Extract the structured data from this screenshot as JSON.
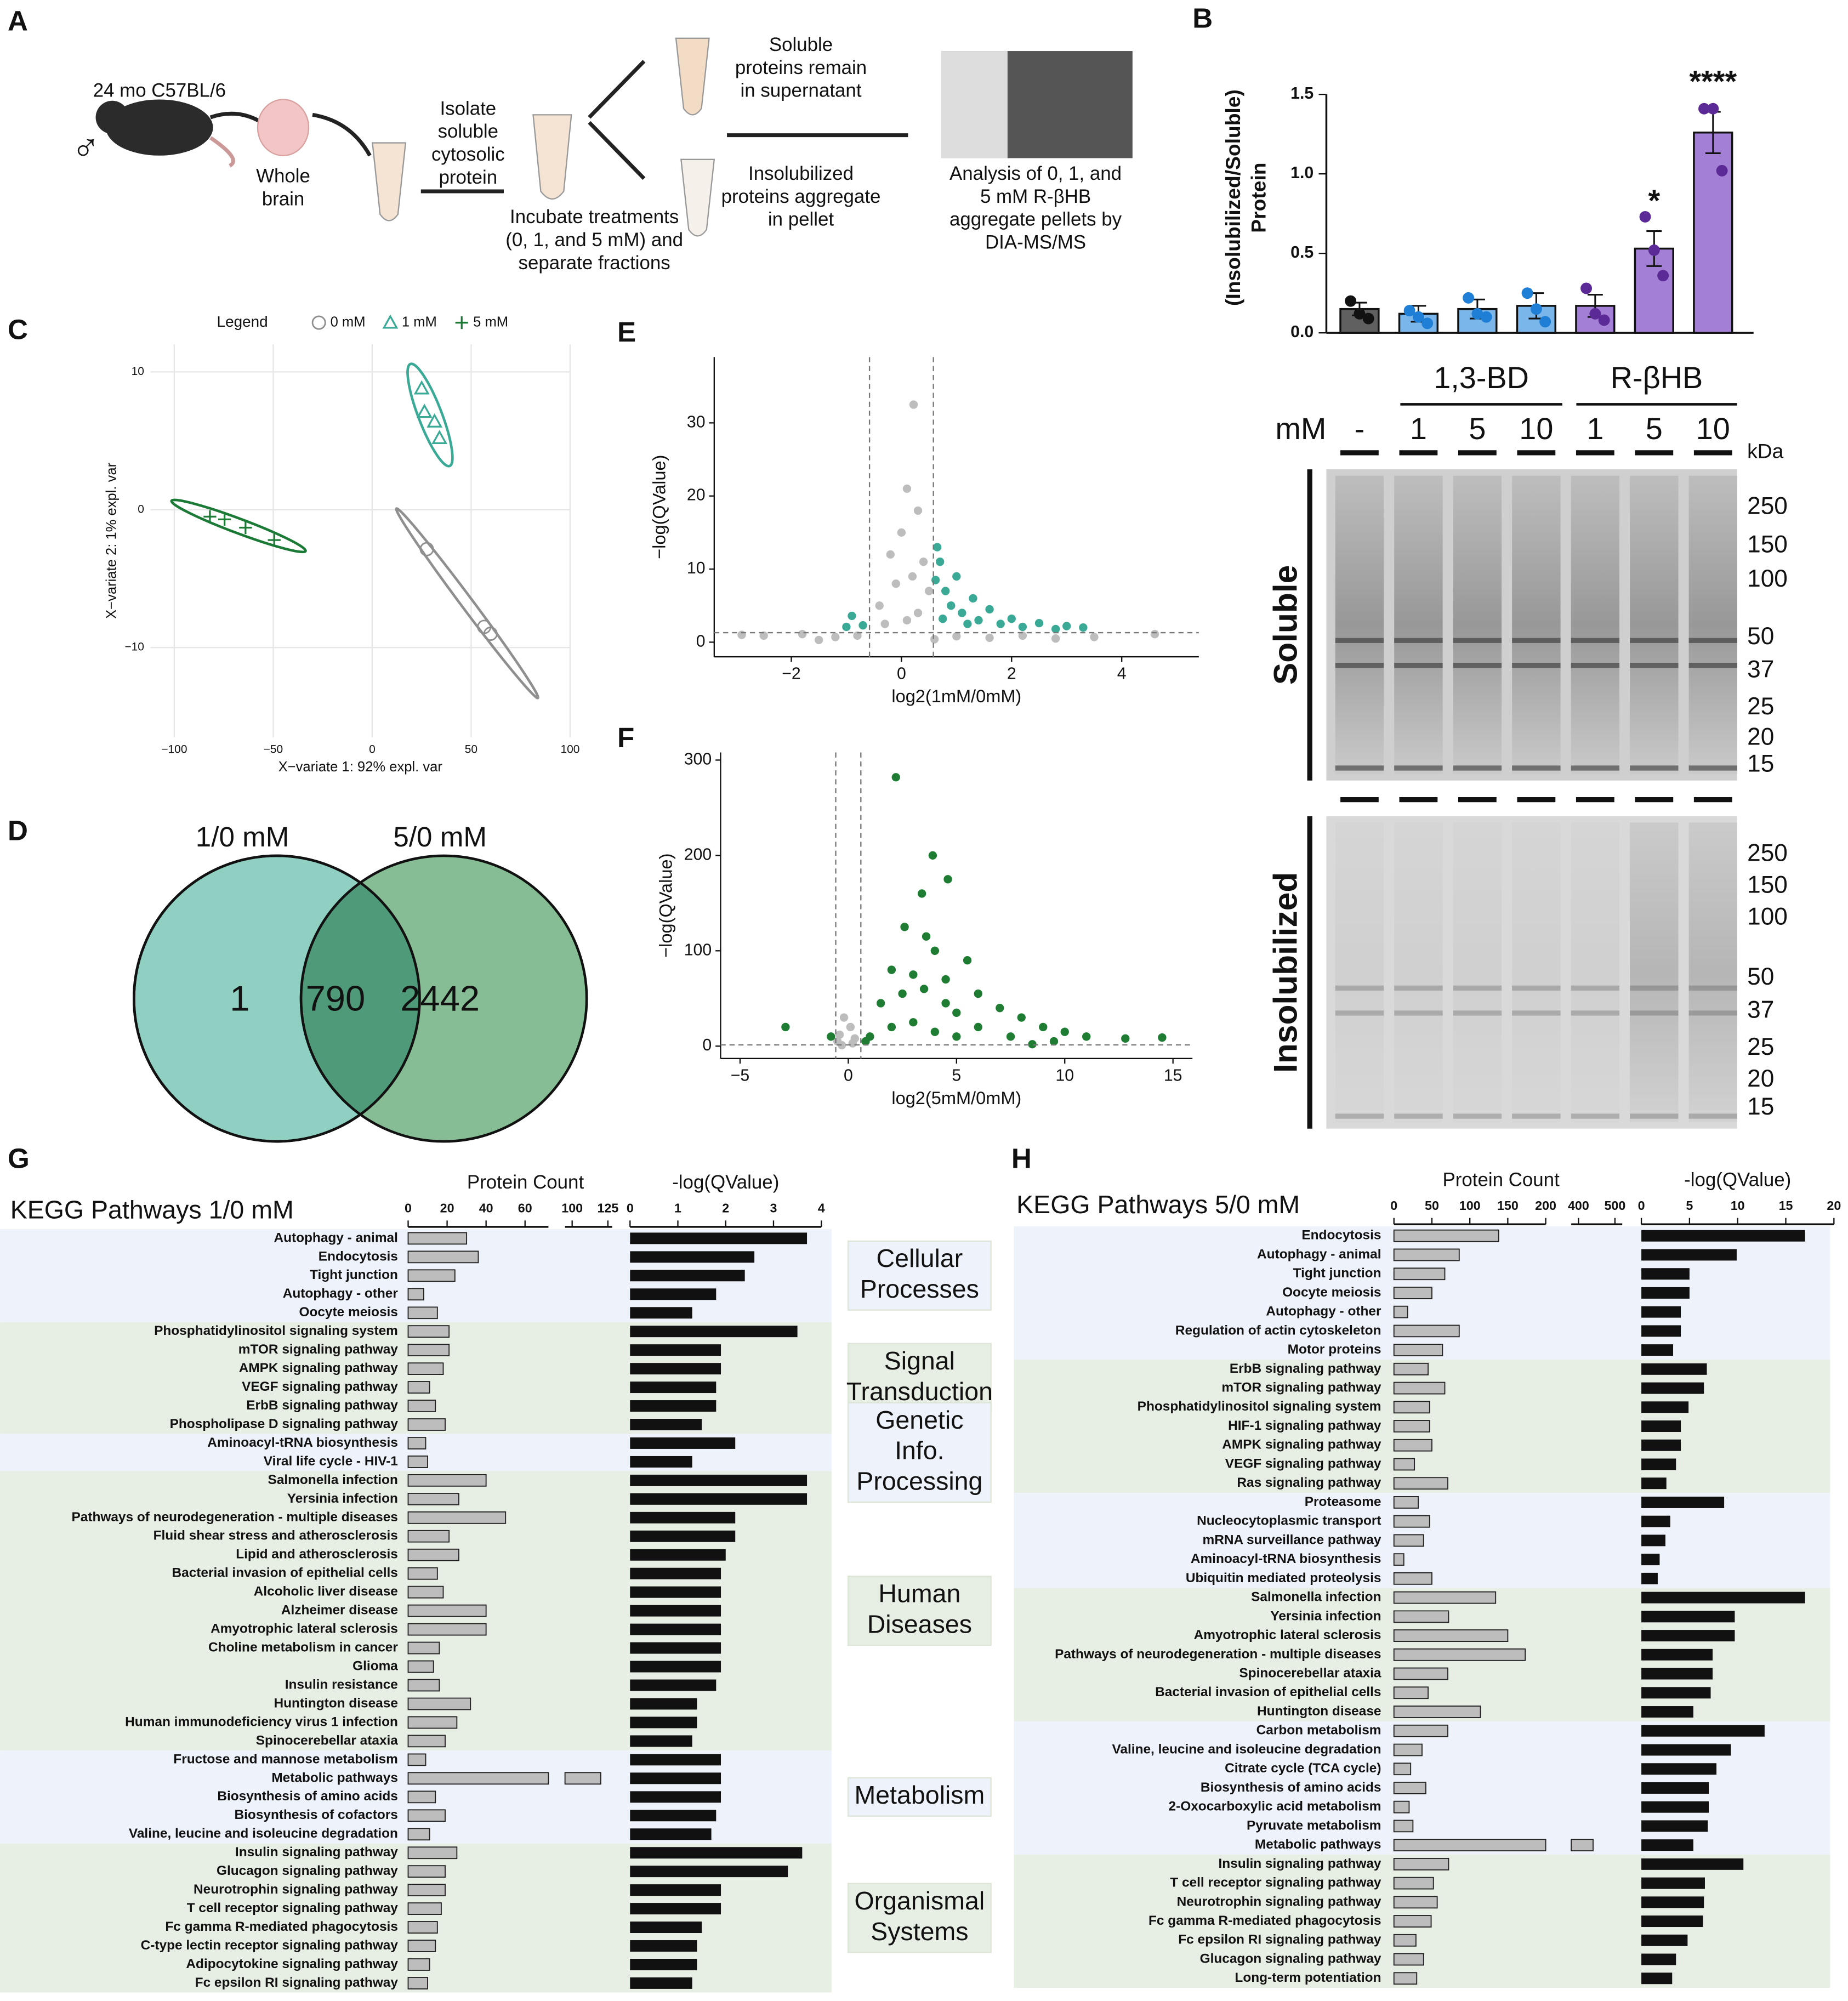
{
  "panel_labels": [
    "A",
    "B",
    "C",
    "D",
    "E",
    "F",
    "G",
    "H"
  ],
  "schematic": {
    "sex": "♂",
    "blocks": [
      [
        "24 mo C57BL/6"
      ],
      [
        "Whole",
        "brain"
      ],
      [
        "Isolate",
        "soluble",
        "cytosolic",
        "protein"
      ],
      [
        "Incubate treatments",
        "(0, 1, and 5 mM) and",
        "separate fractions"
      ],
      [
        "Soluble",
        "proteins remain",
        "in supernatant"
      ],
      [
        "Insolubilized",
        "proteins aggregate",
        "in pellet"
      ],
      [
        "Analysis of 0, 1, and",
        "5 mM R-βHB",
        "aggregate pellets by",
        "DIA-MS/MS"
      ]
    ]
  },
  "gel": {
    "unit": "mM",
    "groups": [
      "1,3-BD",
      "R-βHB"
    ],
    "lanes": [
      "-",
      "1",
      "5",
      "10",
      "1",
      "5",
      "10"
    ],
    "kda_label": "kDa",
    "soluble_label": "Soluble",
    "insoluble_label": "Insolubilized",
    "markers": [
      250,
      150,
      100,
      50,
      37,
      25,
      20,
      15
    ]
  },
  "chart_data": [
    {
      "type": "bar",
      "ylabel": [
        "(Insolubilized/Soluble)",
        "Protein"
      ],
      "values": [
        0.15,
        0.12,
        0.15,
        0.17,
        0.17,
        0.53,
        1.26
      ],
      "errors": [
        0.04,
        0.05,
        0.06,
        0.08,
        0.07,
        0.11,
        0.13
      ],
      "points": [
        [
          0.2,
          0.12,
          0.09
        ],
        [
          0.14,
          0.1,
          0.06
        ],
        [
          0.22,
          0.12,
          0.1
        ],
        [
          0.25,
          0.15,
          0.07
        ],
        [
          0.28,
          0.12,
          0.08
        ],
        [
          0.73,
          0.52,
          0.36
        ],
        [
          1.41,
          1.41,
          1.02
        ]
      ],
      "significance": [
        null,
        null,
        null,
        null,
        null,
        "*",
        "****"
      ],
      "colors": [
        "#606060",
        "#7ab6ea",
        "#7ab6ea",
        "#7ab6ea",
        "#a47fd6",
        "#a47fd6",
        "#a47fd6"
      ],
      "point_colors": [
        "#111111",
        "#1f7fd6",
        "#1f7fd6",
        "#1f7fd6",
        "#5b2a96",
        "#5b2a96",
        "#5b2a96"
      ],
      "ylim": [
        0,
        1.5
      ],
      "yticks": [
        {
          "value": 0,
          "label": "0.0"
        },
        0.5,
        {
          "value": 1,
          "label": "1.0"
        },
        1.5
      ]
    },
    {
      "type": "scatter",
      "legend_title": "Legend",
      "xlabel": "X−variate 1: 92% expl. var",
      "ylabel": "X−variate 2: 1% expl. var",
      "grid": true,
      "xlim": [
        -112,
        100
      ],
      "ylim": [
        -16.5,
        12
      ],
      "xticks": [
        {
          "value": -100,
          "label": "−100"
        },
        {
          "value": -50,
          "label": "−50"
        },
        0,
        50,
        100
      ],
      "yticks": [
        {
          "value": -10,
          "label": "−10"
        },
        0,
        10
      ],
      "series": [
        {
          "name": "0 mM",
          "color": "#8f8f8f",
          "marker": "circle",
          "x": [
            27.6,
            56.6,
            59.8
          ],
          "y": [
            -2.86,
            -8.5,
            -9.0
          ]
        },
        {
          "name": "1 mM",
          "color": "#3aaa96",
          "marker": "triangle",
          "x": [
            25,
            26.4,
            31.5,
            34
          ],
          "y": [
            8.8,
            7.1,
            6.4,
            5.2
          ]
        },
        {
          "name": "5 mM",
          "color": "#1a7a36",
          "marker": "plus",
          "x": [
            -82,
            -74.6,
            -64,
            -49.5
          ],
          "y": [
            -0.5,
            -0.7,
            -1.3,
            -2.2
          ]
        }
      ]
    },
    {
      "type": "venn",
      "sets": [
        "1/0 mM",
        "5/0 mM"
      ],
      "values": [
        1,
        790,
        2442
      ],
      "colors": [
        "#8fd0c2",
        "#86bd94",
        "#4f9a78"
      ]
    },
    {
      "type": "volcano",
      "xlabel": "log2(1mM/0mM)",
      "ylabel": "−log(QValue)",
      "xlim": [
        -3.4,
        5.4
      ],
      "ylim": [
        -2,
        39
      ],
      "xticks": [
        {
          "value": -2,
          "label": "−2"
        },
        0,
        2,
        4
      ],
      "yticks": [
        0,
        10,
        20,
        30
      ],
      "thresholds": {
        "x": [
          -0.58,
          0.58
        ],
        "y": 1.3
      },
      "series": [
        {
          "color": "#bdbdbd",
          "x": [
            0.22,
            0.1,
            0.3,
            0.0,
            -0.2,
            0.4,
            0.2,
            -0.1,
            0.5,
            -0.4,
            0.3,
            0.1,
            -0.3,
            -2.9,
            -2.5,
            -1.8,
            -1.2,
            -0.8,
            1,
            1.6,
            2.2,
            2.8,
            3.5,
            4.6,
            -1.5,
            0.6
          ],
          "y": [
            32.5,
            21,
            18,
            15,
            12,
            11,
            9,
            8,
            7,
            5,
            4,
            3,
            2.5,
            1,
            0.9,
            1.1,
            0.7,
            0.9,
            0.8,
            0.6,
            0.9,
            0.5,
            0.7,
            1.1,
            0.3,
            0.4
          ]
        },
        {
          "color": "#3aaa96",
          "x": [
            -0.7,
            -0.9,
            -1.0,
            0.62,
            0.7,
            0.65,
            0.8,
            0.9,
            1.0,
            1.1,
            1.3,
            1.4,
            1.6,
            1.8,
            2.0,
            2.2,
            2.5,
            2.8,
            3.0,
            3.3,
            1.2,
            0.75
          ],
          "y": [
            2.3,
            3.6,
            2.1,
            8.5,
            11,
            13,
            7,
            5,
            9,
            4,
            6,
            3,
            4.5,
            2.5,
            3.2,
            2.1,
            2.6,
            1.8,
            2.2,
            2.0,
            2.5,
            3.2
          ]
        }
      ]
    },
    {
      "type": "volcano",
      "xlabel": "log2(5mM/0mM)",
      "ylabel": "−log(QValue)",
      "xlim": [
        -5.9,
        15.9
      ],
      "ylim": [
        -13,
        308
      ],
      "xticks": [
        {
          "value": -5,
          "label": "−5"
        },
        0,
        5,
        10,
        15
      ],
      "yticks": [
        0,
        100,
        200,
        300
      ],
      "thresholds": {
        "x": [
          -0.58,
          0.58
        ],
        "y": 1.3
      },
      "series": [
        {
          "color": "#bdbdbd",
          "x": [
            -0.4,
            -0.2,
            0.1,
            0.3,
            -0.5,
            0.2,
            -0.3
          ],
          "y": [
            12,
            30,
            20,
            8,
            5,
            3,
            1
          ]
        },
        {
          "color": "#1e7d32",
          "x": [
            -2.9,
            -0.8,
            2.2,
            3.9,
            4.6,
            3.4,
            2.6,
            3.6,
            4.0,
            5.5,
            2.0,
            3.0,
            4.5,
            6.0,
            7,
            8,
            9,
            10,
            11,
            12.8,
            14.5,
            1.5,
            2.5,
            3.5,
            4.5,
            5,
            2,
            3,
            6,
            1,
            0.8,
            7.5,
            9.5,
            4,
            5,
            8.5
          ],
          "y": [
            20,
            10,
            282,
            200,
            175,
            160,
            125,
            115,
            100,
            90,
            80,
            75,
            70,
            55,
            40,
            30,
            20,
            15,
            10,
            8,
            9,
            45,
            55,
            60,
            45,
            35,
            20,
            25,
            20,
            10,
            5,
            10,
            5,
            15,
            10,
            2
          ]
        }
      ]
    },
    {
      "type": "kegg",
      "title": "KEGG Pathways 1/0 mM",
      "count_title": "Protein Count",
      "q_title": "-log(QValue)",
      "count_segments": [
        {
          "xlim": [
            0,
            72
          ],
          "xticks": [
            0,
            20,
            40,
            60
          ]
        },
        {
          "xlim": [
            95,
            128
          ],
          "xticks": [
            100,
            125
          ]
        }
      ],
      "qlim": [
        0,
        4
      ],
      "qticks": [
        0,
        1,
        2,
        3,
        4
      ],
      "band_colors": [
        "#eef2fa",
        "#e7eee3"
      ],
      "count_color": "#bdbdbd",
      "q_color": "#111111",
      "groups": [
        {
          "label": [
            "Cellular",
            "Processes"
          ],
          "categories": [
            "Autophagy - animal",
            "Endocytosis",
            "Tight junction",
            "Autophagy - other",
            "Oocyte meiosis"
          ],
          "counts": [
            30,
            36,
            24,
            8,
            15
          ],
          "qvalues": [
            3.7,
            2.6,
            2.4,
            1.8,
            1.3
          ]
        },
        {
          "label": [
            "Signal",
            "Transduction"
          ],
          "categories": [
            "Phosphatidylinositol signaling system",
            "mTOR signaling pathway",
            "AMPK signaling pathway",
            "VEGF signaling pathway",
            "ErbB signaling pathway",
            "Phospholipase D signaling pathway"
          ],
          "counts": [
            21,
            21,
            18,
            11,
            14,
            19
          ],
          "qvalues": [
            3.5,
            1.9,
            1.9,
            1.8,
            1.8,
            1.5
          ]
        },
        {
          "label": [
            "Genetic",
            "Info.",
            "Processing"
          ],
          "categories": [
            "Aminoacyl-tRNA biosynthesis",
            "Viral life cycle - HIV-1"
          ],
          "counts": [
            9,
            10
          ],
          "qvalues": [
            2.2,
            1.3
          ]
        },
        {
          "label": [
            "Human",
            "Diseases"
          ],
          "categories": [
            "Salmonella infection",
            "Yersinia infection",
            "Pathways of neurodegeneration - multiple diseases",
            "Fluid shear stress and atherosclerosis",
            "Lipid and atherosclerosis",
            "Bacterial invasion of epithelial cells",
            "Alcoholic liver disease",
            "Alzheimer disease",
            "Amyotrophic lateral sclerosis",
            "Choline metabolism in cancer",
            "Glioma",
            "Insulin resistance",
            "Huntington disease",
            "Human immunodeficiency virus 1 infection",
            "Spinocerebellar ataxia"
          ],
          "counts": [
            40,
            26,
            50,
            21,
            26,
            15,
            18,
            40,
            40,
            16,
            13,
            16,
            32,
            25,
            19
          ],
          "qvalues": [
            3.7,
            3.7,
            2.2,
            2.2,
            2.0,
            1.9,
            1.9,
            1.9,
            1.9,
            1.9,
            1.9,
            1.8,
            1.4,
            1.4,
            1.3
          ]
        },
        {
          "label": [
            "Metabolism"
          ],
          "categories": [
            "Fructose and mannose metabolism",
            "Metabolic pathways",
            "Biosynthesis of amino acids",
            "Biosynthesis of cofactors",
            "Valine, leucine and isoleucine degradation"
          ],
          "counts": [
            9,
            120,
            14,
            19,
            11
          ],
          "qvalues": [
            1.9,
            1.9,
            1.9,
            1.8,
            1.7
          ]
        },
        {
          "label": [
            "Organismal",
            "Systems"
          ],
          "categories": [
            "Insulin signaling pathway",
            "Glucagon signaling pathway",
            "Neurotrophin signaling pathway",
            "T cell receptor signaling pathway",
            "Fc gamma R-mediated phagocytosis",
            "C-type lectin receptor signaling pathway",
            "Adipocytokine signaling pathway",
            "Fc epsilon RI signaling pathway"
          ],
          "counts": [
            25,
            19,
            19,
            17,
            15,
            14,
            11,
            10
          ],
          "qvalues": [
            3.6,
            3.3,
            1.9,
            1.9,
            1.5,
            1.4,
            1.4,
            1.3
          ]
        }
      ]
    },
    {
      "type": "kegg",
      "title": "KEGG Pathways 5/0 mM",
      "count_title": "Protein Count",
      "q_title": "-log(QValue)",
      "count_segments": [
        {
          "xlim": [
            0,
            200
          ],
          "xticks": [
            0,
            50,
            100,
            150,
            200
          ]
        },
        {
          "xlim": [
            380,
            520
          ],
          "xticks": [
            400,
            500
          ]
        }
      ],
      "qlim": [
        0,
        20
      ],
      "qticks": [
        0,
        5,
        10,
        15,
        20
      ],
      "band_colors": [
        "#eef2fa",
        "#e7eee3"
      ],
      "count_color": "#bdbdbd",
      "q_color": "#111111",
      "groups": [
        {
          "categories": [
            "Endocytosis",
            "Autophagy - animal",
            "Tight junction",
            "Oocyte meiosis",
            "Autophagy - other",
            "Regulation of actin cytoskeleton",
            "Motor proteins"
          ],
          "counts": [
            138,
            86,
            67,
            50,
            18,
            86,
            64
          ],
          "qvalues": [
            17,
            9.9,
            5,
            5,
            4.1,
            4.1,
            3.3
          ]
        },
        {
          "categories": [
            "ErbB signaling pathway",
            "mTOR signaling pathway",
            "Phosphatidylinositol signaling system",
            "HIF-1 signaling pathway",
            "AMPK signaling pathway",
            "VEGF signaling pathway",
            "Ras signaling pathway"
          ],
          "counts": [
            45,
            67,
            47,
            47,
            50,
            27,
            71
          ],
          "qvalues": [
            6.8,
            6.5,
            4.9,
            4.1,
            4.1,
            3.6,
            2.6
          ]
        },
        {
          "categories": [
            "Proteasome",
            "Nucleocytoplasmic transport",
            "mRNA surveillance pathway",
            "Aminoacyl-tRNA biosynthesis",
            "Ubiquitin mediated proteolysis"
          ],
          "counts": [
            32,
            47,
            39,
            13,
            50
          ],
          "qvalues": [
            8.6,
            3,
            2.5,
            1.9,
            1.7
          ]
        },
        {
          "categories": [
            "Salmonella infection",
            "Yersinia infection",
            "Amyotrophic lateral sclerosis",
            "Pathways of neurodegeneration - multiple diseases",
            "Spinocerebellar ataxia",
            "Bacterial invasion of epithelial cells",
            "Huntington disease"
          ],
          "counts": [
            134,
            72,
            150,
            173,
            71,
            45,
            114
          ],
          "qvalues": [
            17,
            9.7,
            9.7,
            7.4,
            7.4,
            7.2,
            5.4
          ]
        },
        {
          "categories": [
            "Carbon metabolism",
            "Valine, leucine and isoleucine degradation",
            "Citrate cycle (TCA cycle)",
            "Biosynthesis of amino acids",
            "2-Oxocarboxylic acid metabolism",
            "Pyruvate metabolism",
            "Metabolic pathways"
          ],
          "counts": [
            71,
            37,
            22,
            42,
            20,
            25,
            440
          ],
          "qvalues": [
            12.8,
            9.3,
            7.8,
            7,
            7,
            6.9,
            5.4
          ]
        },
        {
          "categories": [
            "Insulin signaling pathway",
            "T cell receptor signaling pathway",
            "Neurotrophin signaling pathway",
            "Fc gamma R-mediated phagocytosis",
            "Fc epsilon RI signaling pathway",
            "Glucagon signaling pathway",
            "Long-term potentiation"
          ],
          "counts": [
            72,
            52,
            57,
            49,
            29,
            39,
            30
          ],
          "qvalues": [
            10.6,
            6.6,
            6.5,
            6.4,
            4.8,
            3.6,
            3.2
          ]
        }
      ]
    }
  ]
}
